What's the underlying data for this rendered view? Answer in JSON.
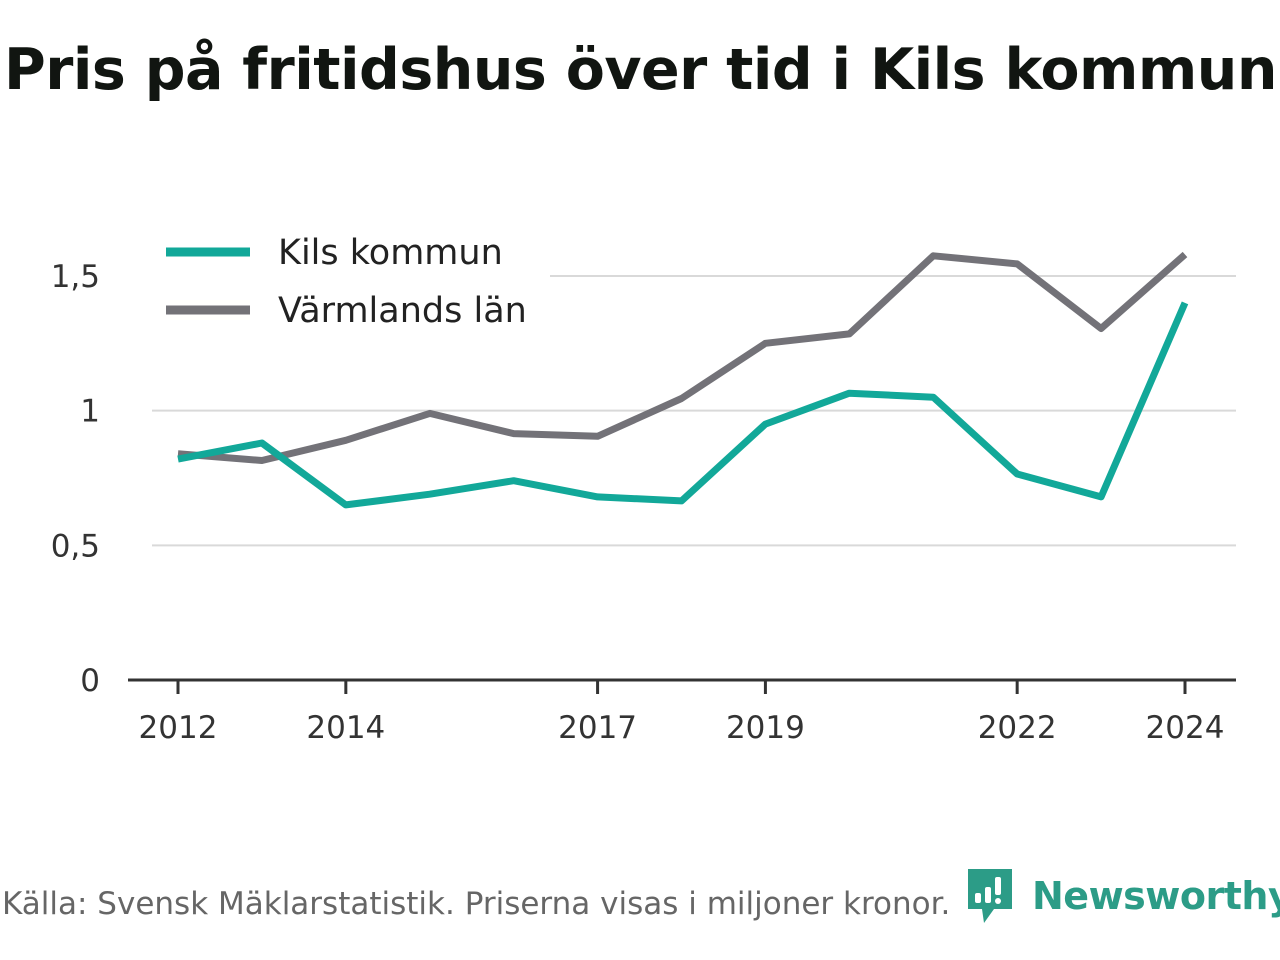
{
  "title": "Pris på fritidshus över tid i Kils kommun",
  "footer": {
    "source": "Källa: Svensk Mäklarstatistik. Priserna visas i miljoner kronor.",
    "brand": "Newsworthy"
  },
  "colors": {
    "kil": "#12a899",
    "varmland": "#737278",
    "grid": "#d9d9d9",
    "axis": "#333333",
    "brand": "#2c9c87"
  },
  "chart_data": {
    "type": "line",
    "title": "Pris på fritidshus över tid i Kils kommun",
    "xlabel": "",
    "ylabel": "",
    "x": [
      2012,
      2013,
      2014,
      2015,
      2016,
      2017,
      2018,
      2019,
      2020,
      2021,
      2022,
      2023,
      2024
    ],
    "x_ticks": [
      2012,
      2014,
      2017,
      2019,
      2022,
      2024
    ],
    "y_ticks": [
      {
        "value": 0,
        "label": "0"
      },
      {
        "value": 0.5,
        "label": "0,5"
      },
      {
        "value": 1,
        "label": "1"
      },
      {
        "value": 1.5,
        "label": "1,5"
      }
    ],
    "ylim": [
      0,
      1.6
    ],
    "grid": true,
    "legend": "top-left",
    "series": [
      {
        "name": "Kils kommun",
        "color": "#12a899",
        "values": [
          0.82,
          0.88,
          0.65,
          0.69,
          0.74,
          0.68,
          0.665,
          0.95,
          1.065,
          1.05,
          0.765,
          0.68,
          1.4
        ]
      },
      {
        "name": "Värmlands län",
        "color": "#737278",
        "values": [
          0.84,
          0.815,
          0.89,
          0.99,
          0.915,
          0.905,
          1.045,
          1.25,
          1.285,
          1.575,
          1.545,
          1.305,
          1.58
        ]
      }
    ]
  }
}
